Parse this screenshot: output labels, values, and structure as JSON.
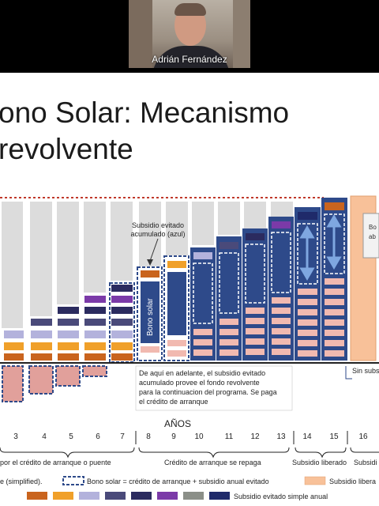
{
  "participant": {
    "name": "Adrián Fernández"
  },
  "slide": {
    "title_line1": "ono Solar: Mecanismo",
    "title_line2": "revolvente",
    "annotation_accumulated": [
      "Subsidio evitado",
      "acumulado (azul)"
    ],
    "bar_label": "Bono solar",
    "note_lines": [
      "De aquí en adelante, el subsidio evitado",
      "acumulado provee el fondo revolvente",
      "para la continuacion del programa. Se paga",
      "el crédito de arranque"
    ],
    "partial_box_1": "Bo",
    "partial_box_2": "ab",
    "partial_label_right": "Sin subs",
    "anos_label": "AÑOS",
    "years": [
      "3",
      "4",
      "5",
      "6",
      "7",
      "8",
      "9",
      "10",
      "11",
      "12",
      "13",
      "14",
      "15",
      "16"
    ],
    "phases": [
      "por el crédito de arranque o puente",
      "Crédito de arranque se repaga",
      "Subsidio liberado",
      "Subsidi"
    ],
    "legend": {
      "simplified": "e (simplified).",
      "bono_solar": "Bono solar = crédito de arranque + subsidio anual evitado",
      "subsidio_liberado": "Subsidio libera",
      "subsidio_simple": "Subsidio evitado simple anual"
    },
    "colors": {
      "navy": "#2e4a8a",
      "light_pink": "#f1b9b0",
      "pink": "#e1a09b",
      "orange": "#f0a02a",
      "lavender": "#b3b2dc",
      "purple": "#7b3aa8",
      "dark_navy": "#2b2b5f",
      "brown": "#c9641e",
      "peach": "#f8c199",
      "gray": "#dcdcdc",
      "red_dotted": "#c0392b"
    }
  }
}
